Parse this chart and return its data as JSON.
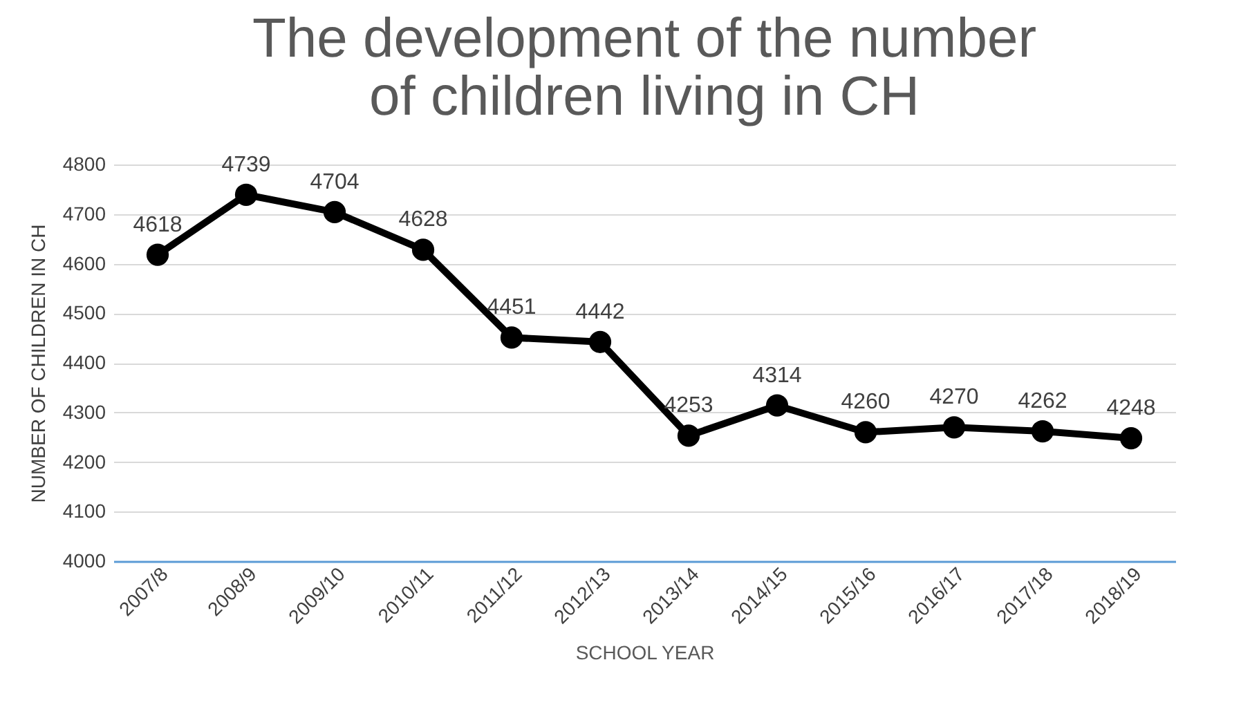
{
  "chart_data": {
    "type": "line",
    "title": "The development of the number of children living in CH",
    "xlabel": "SCHOOL YEAR",
    "ylabel": "NUMBER OF CHILDREN IN CH",
    "categories": [
      "2007/8",
      "2008/9",
      "2009/10",
      "2010/11",
      "2011/12",
      "2012/13",
      "2013/14",
      "2014/15",
      "2015/16",
      "2016/17",
      "2017/18",
      "2018/19"
    ],
    "series": [
      {
        "color": "#000000",
        "values": [
          4618,
          4739,
          4704,
          4628,
          4451,
          4442,
          4253,
          4314,
          4260,
          4270,
          4262,
          4248
        ]
      }
    ],
    "ylim": [
      4000,
      4800
    ],
    "yticks": [
      4000,
      4100,
      4200,
      4300,
      4400,
      4500,
      4600,
      4700,
      4800
    ],
    "grid": "y",
    "marker": "circle",
    "line_style": "solid",
    "data_labels": true,
    "legend": false
  }
}
